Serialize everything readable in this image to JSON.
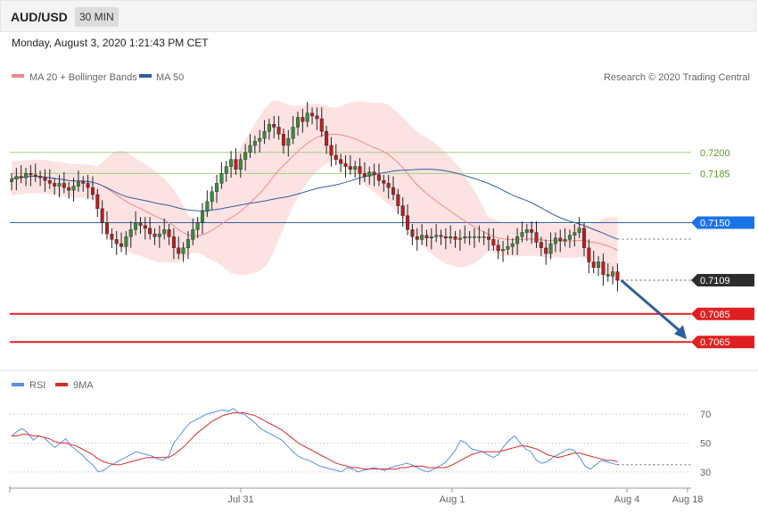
{
  "header": {
    "pair": "AUD/USD",
    "timeframe": "30 MIN"
  },
  "datetime": "Monday, August 3, 2020 1:21:43 PM CET",
  "legend": {
    "ma20": {
      "label": "MA 20 + Bollinger Bands",
      "color": "#ef8a8a"
    },
    "ma50": {
      "label": "MA 50",
      "color": "#2f5f9e"
    },
    "rsi": {
      "label": "RSI",
      "color": "#5b8ee6"
    },
    "ma9": {
      "label": "9MA",
      "color": "#d92b2b"
    }
  },
  "credit": "Research © 2020 Trading Central",
  "chart_data": [
    {
      "type": "candlestick",
      "ylim": [
        0.7048,
        0.7245
      ],
      "x_ticks": [
        "Jul 31",
        "Aug 1",
        "Aug 4",
        "Aug 18"
      ],
      "levels": [
        {
          "label": "0.7200",
          "value": 0.72,
          "kind": "resistance-green"
        },
        {
          "label": "0.7185",
          "value": 0.7185,
          "kind": "resistance-green"
        },
        {
          "label": "0.7150",
          "value": 0.715,
          "kind": "pivot-blue"
        },
        {
          "label": "0.7109",
          "value": 0.7109,
          "kind": "last-price"
        },
        {
          "label": "0.7085",
          "value": 0.7085,
          "kind": "support-red"
        },
        {
          "label": "0.7065",
          "value": 0.7065,
          "kind": "support-red"
        }
      ],
      "close_series": [
        0.7181,
        0.7183,
        0.7182,
        0.7185,
        0.7184,
        0.7183,
        0.7182,
        0.718,
        0.7178,
        0.7176,
        0.7178,
        0.7175,
        0.7173,
        0.7176,
        0.7179,
        0.7178,
        0.7175,
        0.717,
        0.716,
        0.715,
        0.7142,
        0.7138,
        0.7135,
        0.7133,
        0.714,
        0.7145,
        0.715,
        0.7148,
        0.7146,
        0.7142,
        0.714,
        0.7142,
        0.7145,
        0.714,
        0.7132,
        0.7128,
        0.7132,
        0.7138,
        0.7145,
        0.715,
        0.7158,
        0.7165,
        0.7172,
        0.7178,
        0.7185,
        0.719,
        0.7195,
        0.7188,
        0.7195,
        0.72,
        0.7205,
        0.7208,
        0.721,
        0.7215,
        0.722,
        0.7218,
        0.7213,
        0.7205,
        0.721,
        0.7218,
        0.7225,
        0.7222,
        0.7228,
        0.7226,
        0.7224,
        0.7215,
        0.7205,
        0.7198,
        0.7195,
        0.7192,
        0.719,
        0.7188,
        0.719,
        0.7185,
        0.7183,
        0.7186,
        0.7184,
        0.718,
        0.7178,
        0.7175,
        0.717,
        0.7162,
        0.7155,
        0.7145,
        0.714,
        0.7138,
        0.7141,
        0.7139,
        0.714,
        0.7141,
        0.714,
        0.7139,
        0.714,
        0.7138,
        0.7139,
        0.714,
        0.714,
        0.714,
        0.714,
        0.714,
        0.7138,
        0.7134,
        0.713,
        0.7131,
        0.7133,
        0.7135,
        0.714,
        0.7143,
        0.7145,
        0.7143,
        0.7136,
        0.7132,
        0.7128,
        0.7135,
        0.7139,
        0.7137,
        0.7138,
        0.7141,
        0.7143,
        0.7146,
        0.7132,
        0.7122,
        0.7118,
        0.7122,
        0.7113,
        0.7112,
        0.7115,
        0.7109
      ],
      "bands": {
        "ma20_color": "#ef8a8a",
        "band_fill": "#fde2e2",
        "ma50_color": "#2f5f9e"
      },
      "forecast_arrow": {
        "from": 0.7109,
        "to": 0.7065
      }
    },
    {
      "type": "line",
      "title": "",
      "ylim": [
        20,
        85
      ],
      "levels": [
        {
          "label": "70",
          "value": 70
        },
        {
          "label": "50",
          "value": 50
        },
        {
          "label": "30",
          "value": 30
        }
      ],
      "series": [
        {
          "name": "RSI",
          "values": [
            55,
            58,
            60,
            57,
            52,
            55,
            54,
            50,
            47,
            50,
            53,
            48,
            45,
            42,
            38,
            35,
            30,
            31,
            34,
            36,
            38,
            40,
            42,
            44,
            43,
            42,
            41,
            39,
            38,
            41,
            50,
            55,
            60,
            64,
            66,
            68,
            70,
            71,
            72,
            73,
            72,
            74,
            71,
            70,
            67,
            64,
            60,
            58,
            56,
            54,
            52,
            48,
            44,
            41,
            39,
            38,
            36,
            34,
            33,
            32,
            31,
            30,
            33,
            32,
            30,
            31,
            32,
            33,
            32,
            31,
            33,
            34,
            35,
            36,
            35,
            33,
            31,
            30,
            32,
            34,
            36,
            40,
            45,
            52,
            50,
            46,
            45,
            44,
            42,
            40,
            42,
            48,
            52,
            55,
            50,
            46,
            44,
            38,
            36,
            37,
            40,
            42,
            44,
            46,
            45,
            40,
            34,
            32,
            35,
            38,
            37,
            36,
            35
          ]
        },
        {
          "name": "9MA",
          "values": [
            55,
            55,
            56,
            56,
            55,
            55,
            54,
            53,
            51,
            50,
            50,
            49,
            48,
            46,
            44,
            42,
            39,
            37,
            36,
            35,
            35,
            36,
            37,
            38,
            39,
            40,
            40,
            40,
            40,
            40,
            42,
            45,
            48,
            52,
            56,
            59,
            62,
            65,
            67,
            69,
            70,
            71,
            71,
            71,
            70,
            69,
            67,
            65,
            63,
            61,
            59,
            56,
            53,
            50,
            48,
            46,
            44,
            42,
            40,
            38,
            36,
            35,
            34,
            33,
            33,
            32,
            32,
            32,
            32,
            32,
            32,
            32,
            33,
            33,
            34,
            34,
            34,
            33,
            33,
            33,
            33,
            34,
            36,
            38,
            40,
            42,
            43,
            44,
            44,
            44,
            44,
            45,
            46,
            47,
            48,
            48,
            47,
            46,
            44,
            42,
            41,
            40,
            41,
            42,
            43,
            43,
            42,
            41,
            40,
            39,
            38,
            38,
            37
          ]
        }
      ]
    }
  ]
}
